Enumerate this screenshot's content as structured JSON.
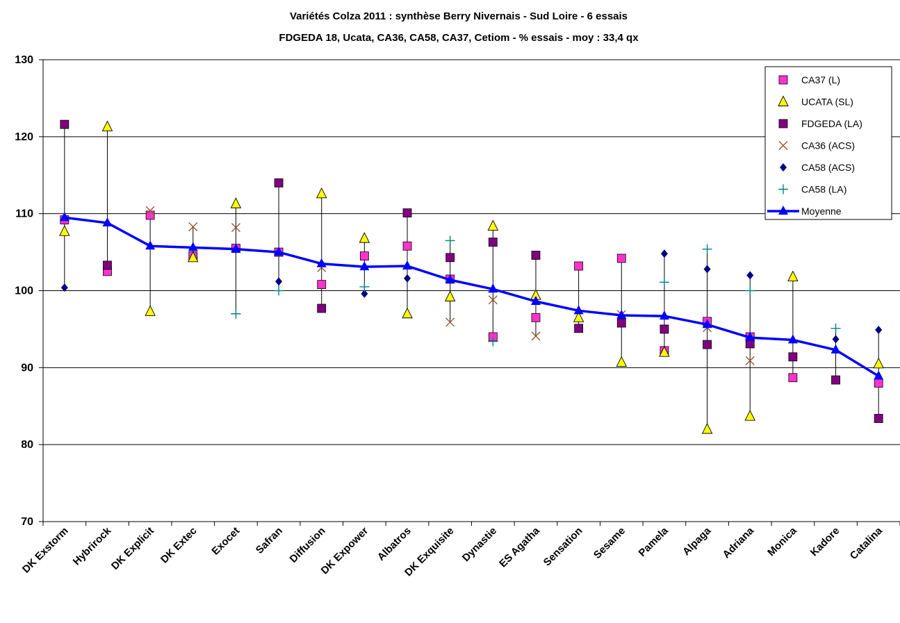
{
  "chart_data": {
    "type": "scatter",
    "title": "Variétés Colza 2011 : synthèse Berry Nivernais - Sud Loire - 6 essais",
    "subtitle": "FDGEDA 18, Ucata, CA36, CA58, CA37, Cetiom  - % essais -   moy : 33,4 qx",
    "xlabel": "",
    "ylabel": "",
    "ylim": [
      70,
      130
    ],
    "yticks": [
      "70",
      "80",
      "90",
      "100",
      "110",
      "120",
      "130"
    ],
    "grid": true,
    "legend_position": "top-right",
    "categories": [
      "DK Exstorm",
      "Hybrirock",
      "DK Explicit",
      "DK Extec",
      "Exocet",
      "Safran",
      "Diffusion",
      "DK Expower",
      "Albatros",
      "DK Exquisite",
      "Dynastie",
      "ES Agatha",
      "Sensation",
      "Sesame",
      "Pamela",
      "Alpaga",
      "Adriana",
      "Monica",
      "Kadore",
      "Catalina"
    ],
    "series": [
      {
        "name": "CA37 (L)",
        "marker": "square",
        "color": "#ff33cc",
        "values": [
          109.2,
          102.5,
          109.8,
          104.5,
          105.5,
          105.0,
          100.8,
          104.5,
          105.8,
          101.5,
          94.0,
          96.5,
          103.2,
          104.2,
          92.2,
          96.0,
          94.0,
          88.7,
          null,
          88.0
        ]
      },
      {
        "name": "UCATA  (SL)",
        "marker": "triangle",
        "color": "#ffff00",
        "values": [
          107.7,
          121.3,
          97.3,
          104.3,
          111.3,
          null,
          112.6,
          106.8,
          97.0,
          99.2,
          108.4,
          99.4,
          96.5,
          90.7,
          92.0,
          82.0,
          83.7,
          101.8,
          null,
          90.5
        ]
      },
      {
        "name": "FDGEDA  (LA)",
        "marker": "square",
        "color": "#800080",
        "values": [
          121.6,
          103.3,
          null,
          null,
          null,
          114.0,
          97.7,
          null,
          110.1,
          104.3,
          106.3,
          104.6,
          95.1,
          95.8,
          95.0,
          93.0,
          93.1,
          91.4,
          88.4,
          83.4
        ]
      },
      {
        "name": "CA36  (ACS)",
        "marker": "x",
        "color": "#a0522d",
        "values": [
          null,
          null,
          110.4,
          108.3,
          108.2,
          null,
          103.0,
          null,
          null,
          95.9,
          98.8,
          94.1,
          null,
          96.9,
          null,
          95.2,
          90.9,
          null,
          null,
          null
        ]
      },
      {
        "name": "CA58 (ACS)",
        "marker": "diamond",
        "color": "#000080",
        "values": [
          100.4,
          null,
          null,
          null,
          null,
          101.2,
          null,
          99.6,
          101.6,
          null,
          null,
          null,
          null,
          null,
          104.8,
          102.8,
          102.0,
          null,
          93.7,
          94.9
        ]
      },
      {
        "name": "CA58 (LA)",
        "marker": "plus",
        "color": "#008080",
        "values": [
          null,
          null,
          null,
          null,
          97.0,
          100.0,
          null,
          100.5,
          null,
          106.5,
          93.4,
          null,
          null,
          null,
          101.1,
          105.4,
          100.0,
          null,
          95.1,
          null
        ]
      },
      {
        "name": "Moyenne",
        "marker": "line-triangle",
        "color": "#0000ff",
        "values": [
          109.5,
          108.8,
          105.8,
          105.6,
          105.4,
          105.0,
          103.5,
          103.1,
          103.2,
          101.4,
          100.2,
          98.6,
          97.4,
          96.8,
          96.7,
          95.6,
          93.9,
          93.6,
          92.3,
          88.9
        ]
      }
    ]
  }
}
